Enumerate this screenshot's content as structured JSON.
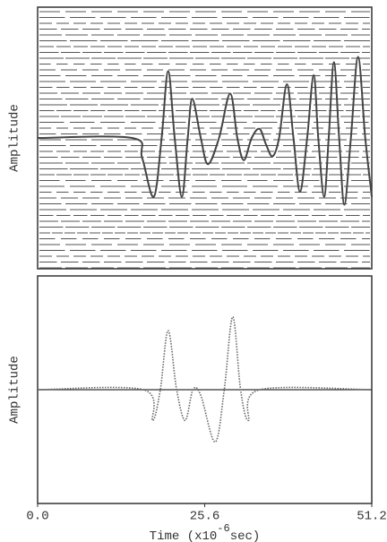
{
  "chart_data": [
    {
      "type": "line",
      "ylabel": "Amplitude",
      "x": [
        0,
        14.5,
        16,
        17.8,
        19,
        20,
        21,
        22.1,
        23,
        23.7,
        25,
        26.1,
        27.8,
        29.5,
        30.6,
        31.6,
        32.8,
        34,
        35,
        36,
        37,
        38.2,
        39.2,
        40.2,
        41.3,
        42.3,
        43,
        43.9,
        44.6,
        45.4,
        46.2,
        47,
        48,
        49.1,
        50.2,
        51.2
      ],
      "values": [
        0,
        0,
        -0.15,
        -0.45,
        0,
        0.51,
        0,
        -0.45,
        0,
        0.3,
        0,
        -0.2,
        0,
        0.34,
        0,
        -0.17,
        0,
        0.07,
        -0.05,
        -0.14,
        0,
        0.41,
        0,
        -0.41,
        0,
        0.48,
        0,
        -0.45,
        0,
        0.58,
        0,
        -0.51,
        0,
        0.62,
        0,
        -0.45
      ],
      "color": "#444444",
      "xlim": [
        0,
        51.2
      ],
      "ylim": [
        -1,
        1
      ]
    },
    {
      "type": "line",
      "ylabel": "Amplitude",
      "xlabel": "Time (x10",
      "xlabel_exponent": "-6",
      "xlabel_suffix": "sec)",
      "x": [
        0,
        16.2,
        17.6,
        18.8,
        20,
        21.3,
        22.6,
        23.8,
        25.0,
        27.2,
        28.6,
        29.9,
        31.1,
        32.3,
        34,
        51.2
      ],
      "values": [
        0,
        0,
        -0.27,
        0,
        0.52,
        0,
        -0.27,
        0,
        -0.05,
        -0.46,
        0,
        0.64,
        0,
        -0.27,
        0,
        0
      ],
      "color": "#666666",
      "xlim": [
        0,
        51.2
      ],
      "ylim": [
        -1,
        1
      ],
      "xticks": [
        {
          "value": 0,
          "label": "0.0"
        },
        25.6,
        51.2
      ]
    }
  ]
}
